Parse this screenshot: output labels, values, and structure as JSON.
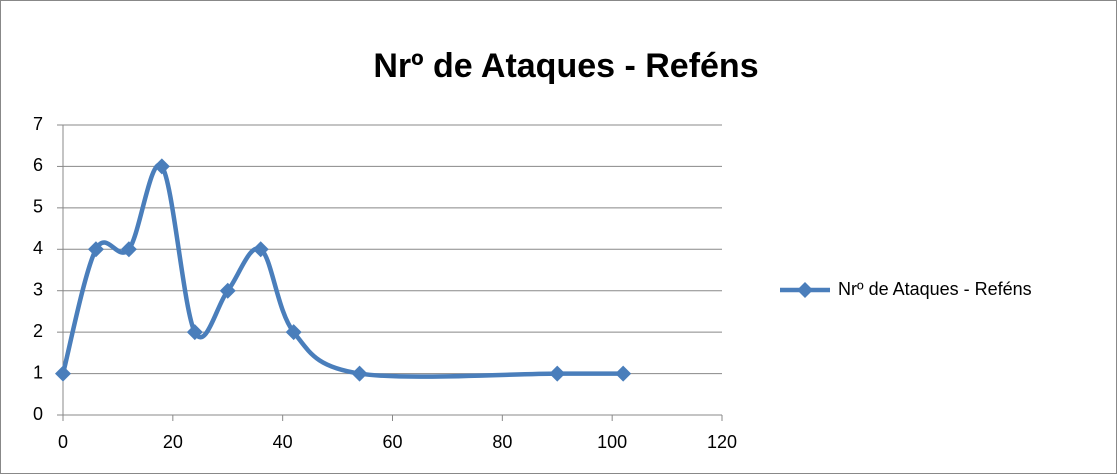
{
  "chart_data": {
    "type": "line",
    "title": "Nrº de Ataques - Reféns",
    "x": [
      0,
      6,
      12,
      18,
      24,
      30,
      36,
      42,
      54,
      90,
      102
    ],
    "series": [
      {
        "name": "Nrº de Ataques - Reféns",
        "color": "#4a7ebb",
        "values": [
          1,
          4,
          4,
          6,
          2,
          3,
          4,
          2,
          1,
          1,
          1
        ]
      }
    ],
    "xlim": [
      0,
      120
    ],
    "xticks": [
      0,
      20,
      40,
      60,
      80,
      100,
      120
    ],
    "ylim": [
      0,
      7
    ],
    "yticks": [
      0,
      1,
      2,
      3,
      4,
      5,
      6,
      7
    ],
    "grid": true,
    "smooth": true,
    "legend": "right"
  }
}
